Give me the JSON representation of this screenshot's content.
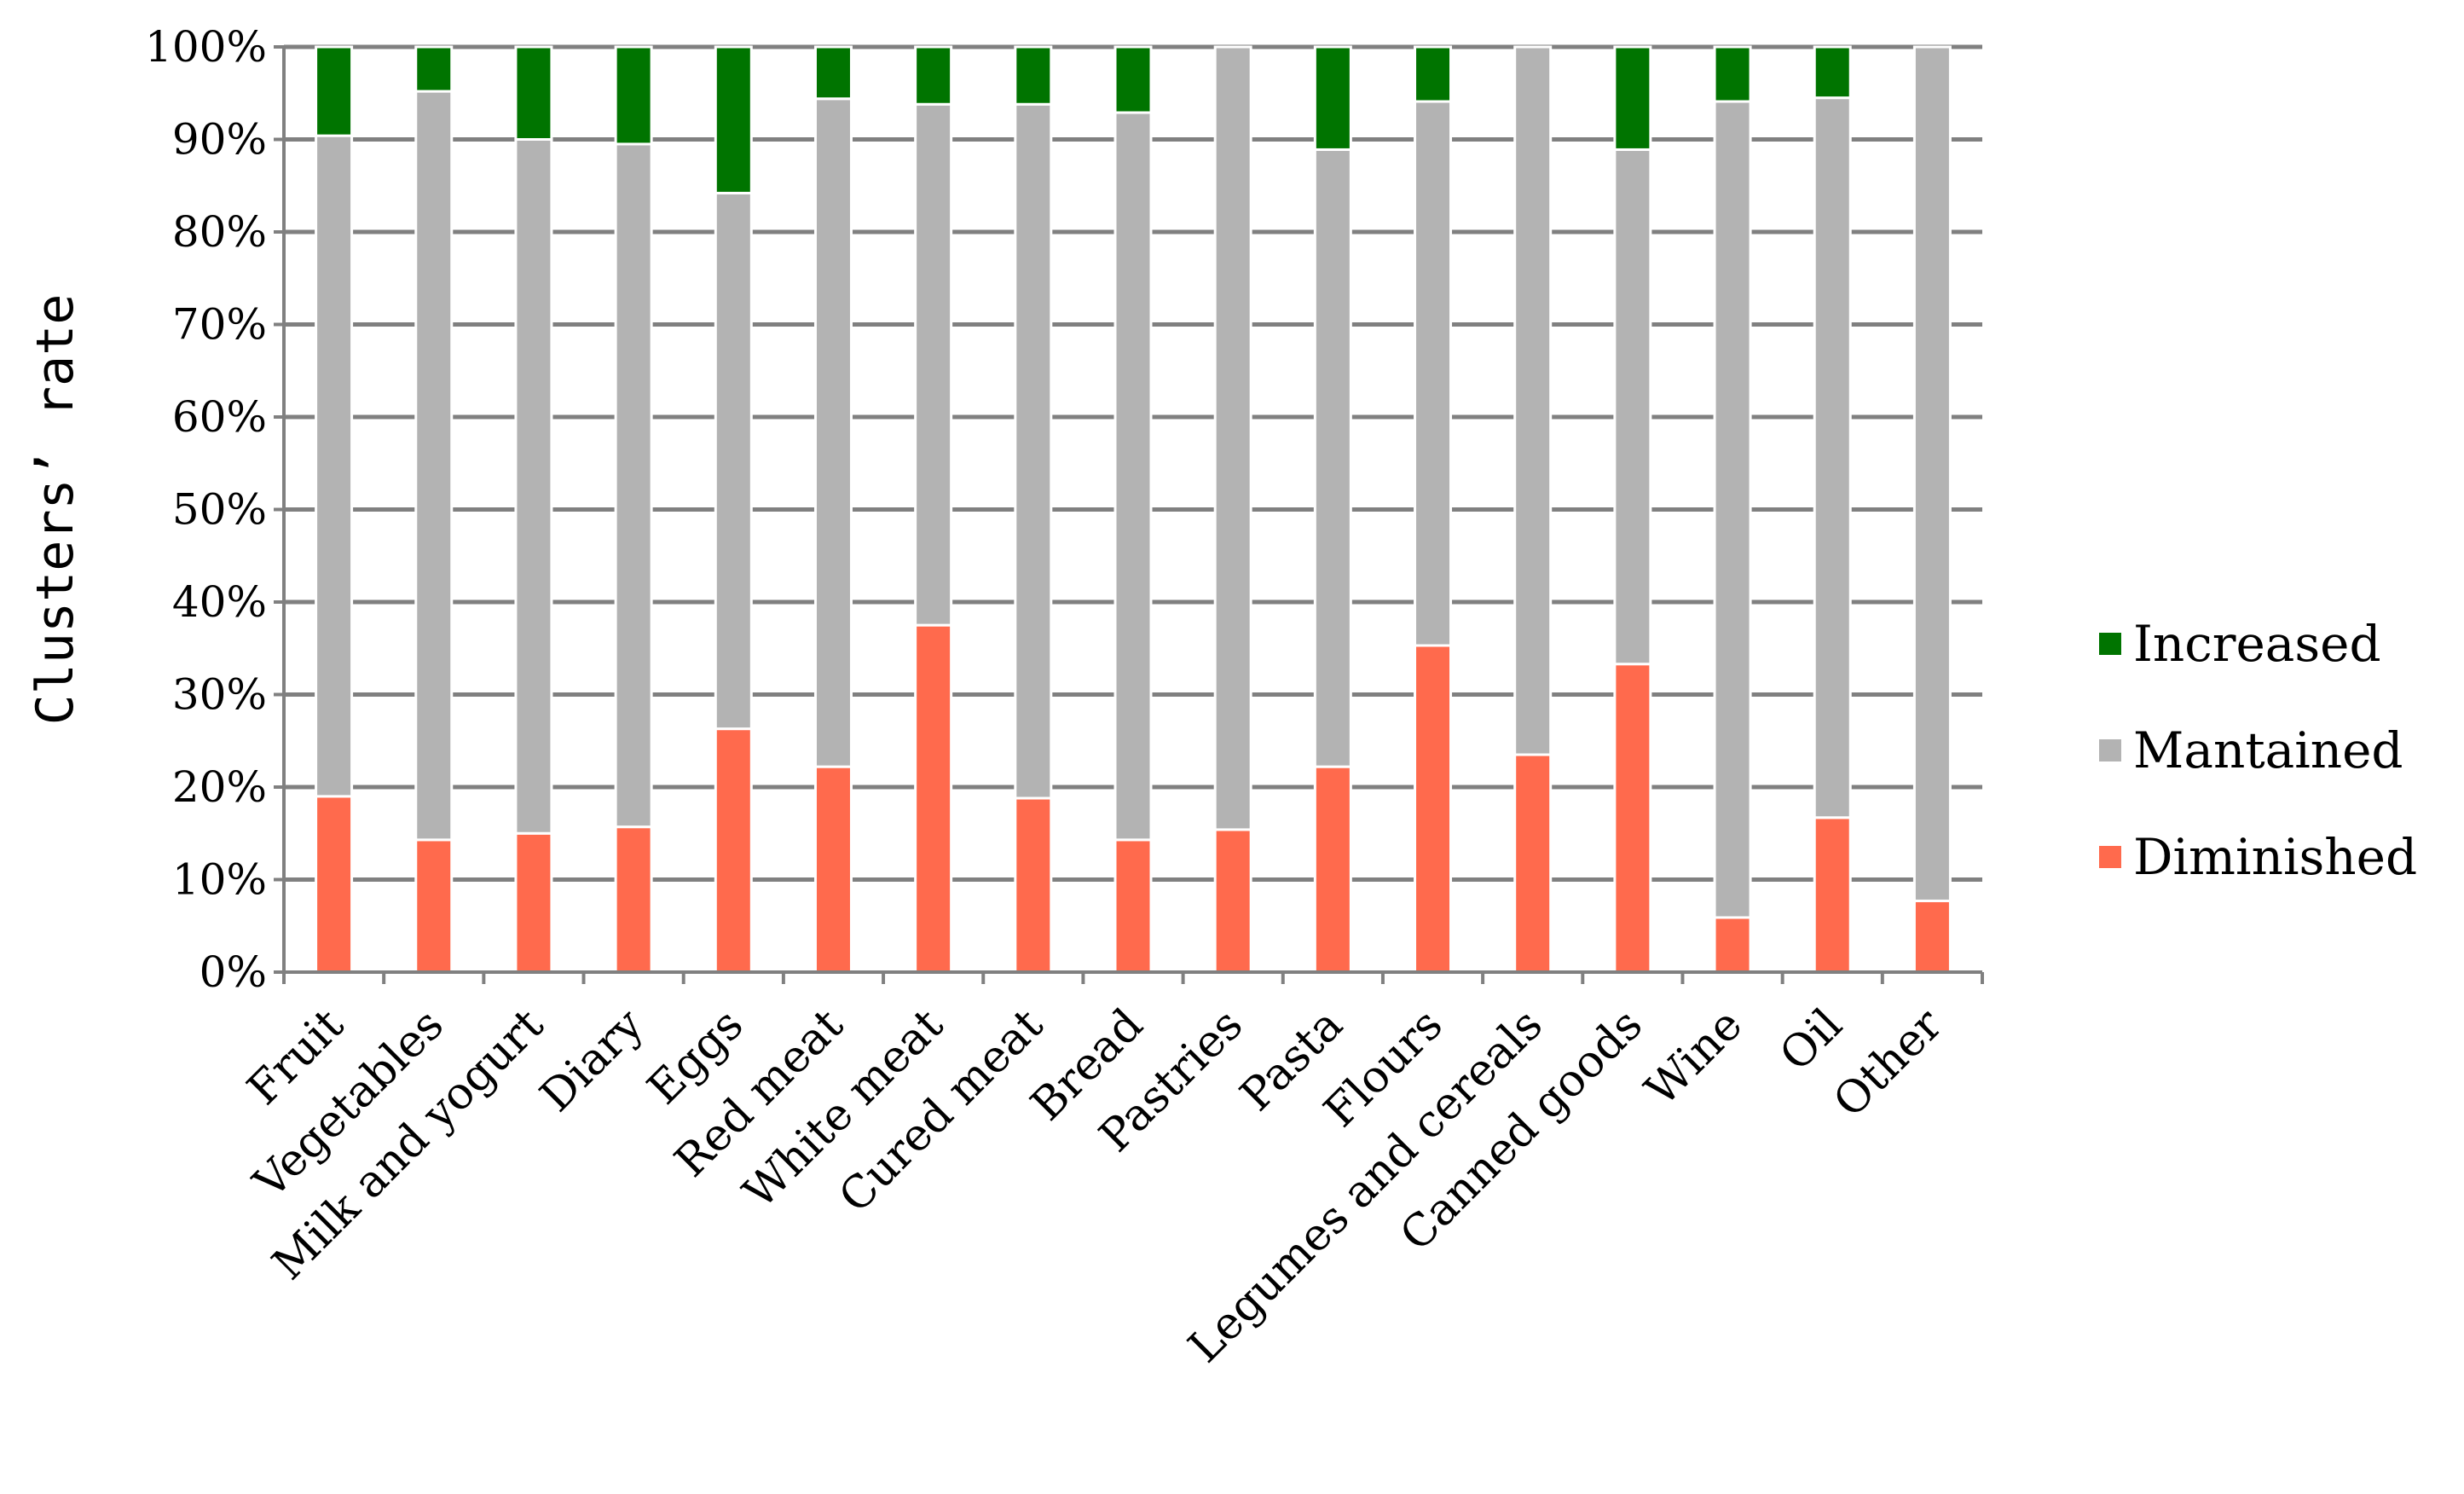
{
  "chart_data": {
    "type": "bar",
    "stacked": true,
    "percent_stacked": true,
    "ylabel": "Clusters’ rate",
    "xlabel": "",
    "ylim": [
      0,
      100
    ],
    "yticks": [
      0,
      10,
      20,
      30,
      40,
      50,
      60,
      70,
      80,
      90,
      100
    ],
    "ytick_labels": [
      "0%",
      "10%",
      "20%",
      "30%",
      "40%",
      "50%",
      "60%",
      "70%",
      "80%",
      "90%",
      "100%"
    ],
    "grid": true,
    "legend_position": "right",
    "categories": [
      "Fruit",
      "Vegetables",
      "Milk and yogurt",
      "Diary",
      "Eggs",
      "Red meat",
      "White meat",
      "Cured meat",
      "Bread",
      "Pastries",
      "Pasta",
      "Flours",
      "Legumes and cereals",
      "Canned goods",
      "Wine",
      "Oil",
      "Other"
    ],
    "series": [
      {
        "name": "Diminished",
        "color": "#ff6a4d",
        "values": [
          19,
          14.3,
          15,
          15.7,
          26.3,
          22.2,
          37.5,
          18.8,
          14.3,
          15.4,
          22.2,
          35.3,
          23.5,
          33.3,
          5.9,
          16.7,
          7.7
        ]
      },
      {
        "name": "Mantained",
        "color": "#b3b3b3",
        "values": [
          71.4,
          80.9,
          75,
          73.8,
          57.9,
          72.2,
          56.3,
          75,
          78.6,
          84.6,
          66.7,
          58.8,
          76.5,
          55.6,
          88.2,
          77.8,
          92.3
        ]
      },
      {
        "name": "Increased",
        "color": "#007400",
        "values": [
          9.6,
          4.8,
          10,
          10.5,
          15.8,
          5.6,
          6.2,
          6.2,
          7.1,
          0,
          11.1,
          5.9,
          0,
          11.1,
          5.9,
          5.5,
          0
        ]
      }
    ],
    "legend_order": [
      "Increased",
      "Mantained",
      "Diminished"
    ],
    "colors": {
      "grid": "#808080",
      "axis": "#808080"
    }
  }
}
